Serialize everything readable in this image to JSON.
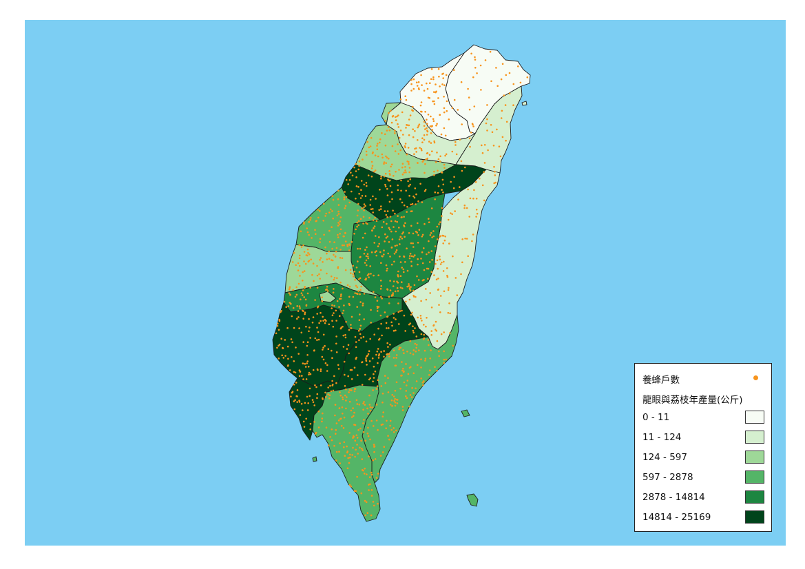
{
  "map": {
    "colors": {
      "sea": "#7ccef3",
      "dot": "#f7941d",
      "border": "#1c1c1c",
      "classes": [
        "#f7fcf5",
        "#d5efcf",
        "#9ed898",
        "#54b567",
        "#1d8641",
        "#00441b"
      ]
    },
    "regions": [
      {
        "id": "taipei-metro",
        "class": 0
      },
      {
        "id": "taoyuan",
        "class": 0
      },
      {
        "id": "hsinchu",
        "class": 1
      },
      {
        "id": "hsinchu-city",
        "class": 2
      },
      {
        "id": "yilan",
        "class": 1
      },
      {
        "id": "miaoli",
        "class": 2
      },
      {
        "id": "taichung",
        "class": 5
      },
      {
        "id": "hualien",
        "class": 1
      },
      {
        "id": "changhua",
        "class": 3
      },
      {
        "id": "nantou",
        "class": 4
      },
      {
        "id": "yunlin",
        "class": 2
      },
      {
        "id": "chiayi",
        "class": 4
      },
      {
        "id": "chiayi-city",
        "class": 2
      },
      {
        "id": "tainan",
        "class": 5
      },
      {
        "id": "kaohsiung",
        "class": 5
      },
      {
        "id": "taitung",
        "class": 3
      },
      {
        "id": "pingtung",
        "class": 3
      }
    ]
  },
  "legend": {
    "dots_label": "養蜂戶數",
    "choropleth_title": "龍眼與荔枝年產量(公斤)",
    "classes": [
      {
        "label": "0 - 11",
        "color": "#f7fcf5"
      },
      {
        "label": "11 - 124",
        "color": "#d5efcf"
      },
      {
        "label": "124 - 597",
        "color": "#9ed898"
      },
      {
        "label": "597 - 2878",
        "color": "#54b567"
      },
      {
        "label": "2878 - 14814",
        "color": "#1d8641"
      },
      {
        "label": "14814 - 25169",
        "color": "#00441b"
      }
    ]
  }
}
